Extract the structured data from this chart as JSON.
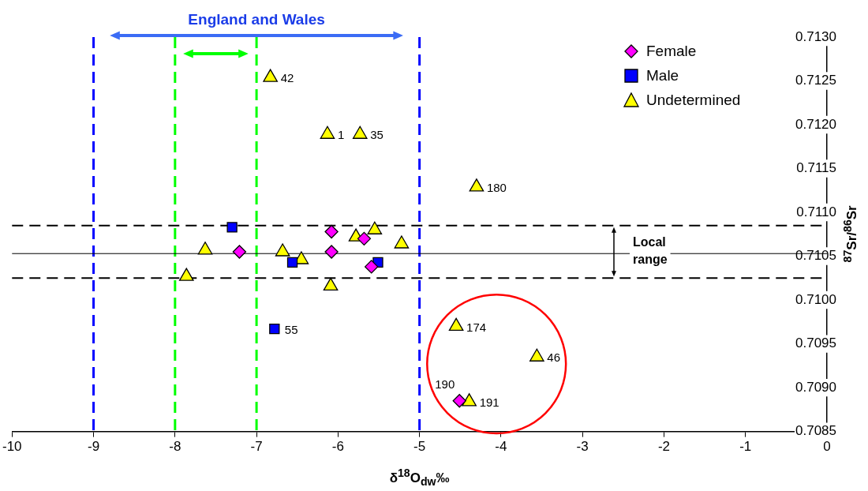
{
  "chart_data": {
    "type": "scatter",
    "xlabel": "δ$^{18}$O$_{dw}$‰",
    "ylabel": "$^{87}$Sr/$^{86}$Sr",
    "xlim": [
      -10,
      0
    ],
    "xticks": [
      -10,
      -9,
      -8,
      -7,
      -6,
      -5,
      -4,
      -3,
      -2,
      -1,
      0
    ],
    "ylim": [
      0.7085,
      0.713
    ],
    "yticks": [
      {
        "value": 0.7085,
        "label": "0.7085"
      },
      {
        "value": 0.709,
        "label": "0.7090"
      },
      {
        "value": 0.7095,
        "label": "0.7095"
      },
      {
        "value": 0.71,
        "label": "0.7100"
      },
      {
        "value": 0.7105,
        "label": "0.7105"
      },
      {
        "value": 0.711,
        "label": "0.7110"
      },
      {
        "value": 0.7115,
        "label": "0.7115"
      },
      {
        "value": 0.712,
        "label": "0.7120"
      },
      {
        "value": 0.7125,
        "label": "0.7125"
      },
      {
        "value": 0.713,
        "label": "0.7130"
      }
    ],
    "grid": false,
    "legend": "top right",
    "series": [
      {
        "name": "Female",
        "color": "#ff00ff",
        "marker": "diamond",
        "x": [
          -7.21,
          -6.08,
          -6.08,
          -5.68,
          -5.59,
          -4.51
        ],
        "values": [
          0.71055,
          0.71078,
          0.71055,
          0.7107,
          0.71038,
          0.70885
        ]
      },
      {
        "name": "Male",
        "color": "#0000ff",
        "marker": "square",
        "x": [
          -7.3,
          -6.56,
          -5.51,
          -6.78
        ],
        "values": [
          0.71083,
          0.71043,
          0.71043,
          0.70967
        ]
      },
      {
        "name": "Undetermined",
        "color": "#ffff00",
        "marker": "triangle",
        "x": [
          -6.83,
          -6.13,
          -5.73,
          -4.3,
          -7.63,
          -7.86,
          -6.68,
          -6.45,
          -6.09,
          -5.78,
          -5.55,
          -5.22,
          -4.55,
          -3.56,
          -4.39
        ],
        "values": [
          0.71254,
          0.71189,
          0.71189,
          0.71129,
          0.71057,
          0.71027,
          0.71055,
          0.71046,
          0.71016,
          0.71072,
          0.7108,
          0.71064,
          0.7097,
          0.70935,
          0.70884
        ]
      }
    ],
    "ref_lines": [
      {
        "axis": "x",
        "value": -9,
        "color": "#0000ff",
        "line_style": "dashed"
      },
      {
        "axis": "x",
        "value": -5,
        "color": "#0000ff",
        "line_style": "dashed"
      },
      {
        "axis": "x",
        "value": -8,
        "color": "#00ff00",
        "line_style": "dashed"
      },
      {
        "axis": "x",
        "value": -7,
        "color": "#00ff00",
        "line_style": "dashed"
      },
      {
        "axis": "y",
        "value": 0.71085,
        "color": "#000000",
        "line_style": "dashed"
      },
      {
        "axis": "y",
        "value": 0.71053,
        "color": "#000000",
        "line_style": "solid"
      },
      {
        "axis": "y",
        "value": 0.71025,
        "color": "#000000",
        "line_style": "dashed"
      }
    ],
    "annotations": [
      "England and Wales",
      "Local range",
      {
        "text": "42",
        "x": -6.83,
        "y": 0.71254
      },
      {
        "text": "1",
        "x": -6.13,
        "y": 0.71189
      },
      {
        "text": "35",
        "x": -5.73,
        "y": 0.71189
      },
      {
        "text": "180",
        "x": -4.3,
        "y": 0.71129
      },
      {
        "text": "55",
        "x": -6.78,
        "y": 0.70967
      },
      {
        "text": "174",
        "x": -4.55,
        "y": 0.7097
      },
      {
        "text": "46",
        "x": -3.56,
        "y": 0.70935
      },
      {
        "text": "190",
        "x": -4.51,
        "y": 0.70885
      },
      {
        "text": "191",
        "x": -4.39,
        "y": 0.70884
      }
    ]
  }
}
